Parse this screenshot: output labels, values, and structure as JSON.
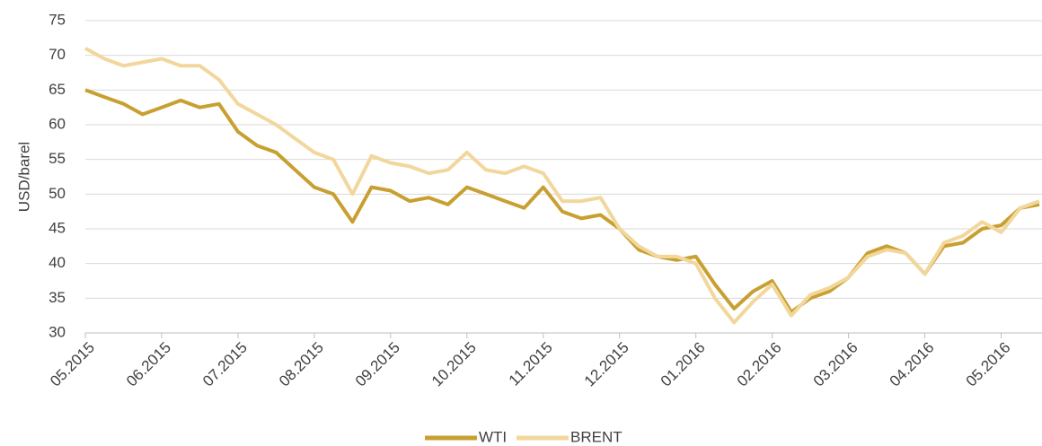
{
  "chart_data": {
    "type": "line",
    "ylabel": "USD/barel",
    "categories": [
      "05.2015",
      null,
      null,
      null,
      "06.2015",
      null,
      null,
      null,
      "07.2015",
      null,
      null,
      null,
      "08.2015",
      null,
      null,
      null,
      "09.2015",
      null,
      null,
      null,
      "10.2015",
      null,
      null,
      null,
      "11.2015",
      null,
      null,
      null,
      "12.2015",
      null,
      null,
      null,
      "01.2016",
      null,
      null,
      null,
      "02.2016",
      null,
      null,
      null,
      "03.2016",
      null,
      null,
      null,
      "04.2016",
      null,
      null,
      null,
      "05.2016",
      null,
      null
    ],
    "series": [
      {
        "name": "WTI",
        "color": "#c8a032",
        "values": [
          65,
          64,
          63,
          61.5,
          62.5,
          63.5,
          62.5,
          63,
          59,
          57,
          56,
          53.5,
          51,
          50,
          46,
          51,
          50.5,
          49,
          49.5,
          48.5,
          51,
          50,
          49,
          48,
          51,
          47.5,
          46.5,
          47,
          45,
          42,
          41,
          40.5,
          41,
          37,
          33.5,
          36,
          37.5,
          33,
          35,
          36,
          38,
          41.5,
          42.5,
          41.5,
          38.5,
          42.5,
          43,
          45,
          45.5,
          48,
          48.5
        ]
      },
      {
        "name": "BRENT",
        "color": "#f2d79c",
        "values": [
          71,
          69.5,
          68.5,
          69,
          69.5,
          68.5,
          68.5,
          66.5,
          63,
          61.5,
          60,
          58,
          56,
          55,
          50,
          55.5,
          54.5,
          54,
          53,
          53.5,
          56,
          53.5,
          53,
          54,
          53,
          49,
          49,
          49.5,
          45,
          42.5,
          41,
          41,
          40,
          35,
          31.5,
          34.5,
          37,
          32.5,
          35.5,
          36.5,
          38,
          41,
          42,
          41.5,
          38.5,
          43,
          44,
          46,
          44.5,
          48,
          49
        ]
      }
    ],
    "ylim": [
      30,
      75
    ],
    "yticks": [
      30,
      35,
      40,
      45,
      50,
      55,
      60,
      65,
      70,
      75
    ],
    "grid": true,
    "legend": "bottom"
  }
}
